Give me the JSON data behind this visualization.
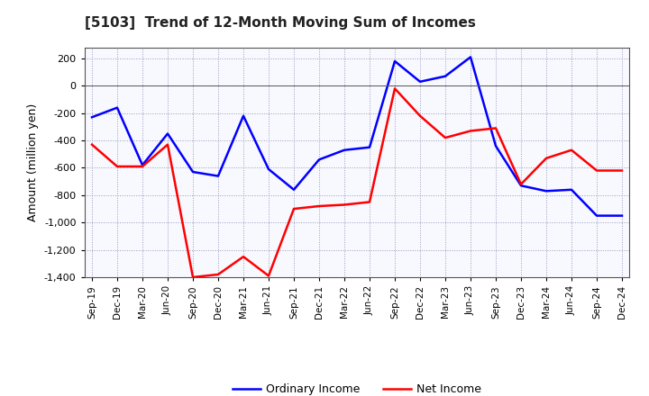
{
  "title": "[5103]  Trend of 12-Month Moving Sum of Incomes",
  "ylabel": "Amount (million yen)",
  "background_color": "#ffffff",
  "plot_bg_color": "#f8f8ff",
  "grid_color": "#9999bb",
  "x_labels": [
    "Sep-19",
    "Dec-19",
    "Mar-20",
    "Jun-20",
    "Sep-20",
    "Dec-20",
    "Mar-21",
    "Jun-21",
    "Sep-21",
    "Dec-21",
    "Mar-22",
    "Jun-22",
    "Sep-22",
    "Dec-22",
    "Mar-23",
    "Jun-23",
    "Sep-23",
    "Dec-23",
    "Mar-24",
    "Jun-24",
    "Sep-24",
    "Dec-24"
  ],
  "ordinary_income": [
    -230,
    -160,
    -580,
    -350,
    -630,
    -660,
    -220,
    -610,
    -760,
    -540,
    -470,
    -450,
    180,
    30,
    70,
    210,
    -440,
    -730,
    -770,
    -760,
    -950,
    -950
  ],
  "net_income": [
    -430,
    -590,
    -590,
    -430,
    -1400,
    -1380,
    -1250,
    -1390,
    -900,
    -880,
    -870,
    -850,
    -20,
    -220,
    -380,
    -330,
    -310,
    -720,
    -530,
    -470,
    -620,
    -620
  ],
  "ylim": [
    -1400,
    280
  ],
  "yticks": [
    -1400,
    -1200,
    -1000,
    -800,
    -600,
    -400,
    -200,
    0,
    200
  ],
  "ordinary_color": "#0000ff",
  "net_color": "#ff0000",
  "line_width": 1.8
}
